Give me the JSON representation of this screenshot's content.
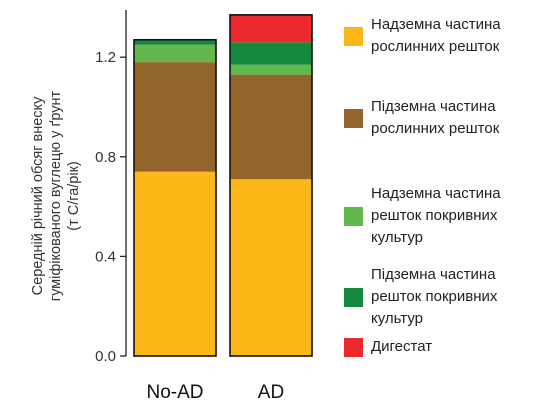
{
  "chart_data": {
    "type": "stacked-bar",
    "categories": [
      "No-AD",
      "AD"
    ],
    "ylabel_lines": [
      "Середній річний обсяг внеску",
      "гуміфікованого вуглецю у ґрунт",
      "(т С/га/рік)"
    ],
    "ylim": [
      0,
      1.4
    ],
    "yticks": [
      "0.0",
      "0.4",
      "0.8",
      "1.2"
    ],
    "ytick_values": [
      0,
      0.4,
      0.8,
      1.2
    ],
    "grid": false,
    "legend_position": "right",
    "series": [
      {
        "name_lines": [
          "Надземна частина",
          "рослинних решток"
        ],
        "color": "#FBB818",
        "values": [
          0.74,
          0.71
        ]
      },
      {
        "name_lines": [
          "Підземна частина",
          "рослинних решток"
        ],
        "color": "#94652A",
        "values": [
          0.44,
          0.42
        ]
      },
      {
        "name_lines": [
          "Надземна частина",
          "решток покривних",
          "культур"
        ],
        "color": "#62B84A",
        "values": [
          0.07,
          0.04
        ]
      },
      {
        "name_lines": [
          "Підземна частина",
          "решток покривних",
          "культур"
        ],
        "color": "#13883E",
        "values": [
          0.02,
          0.09
        ]
      },
      {
        "name_lines": [
          "Дигестат"
        ],
        "color": "#EC2A2D",
        "values": [
          0.0,
          0.11
        ]
      }
    ]
  }
}
